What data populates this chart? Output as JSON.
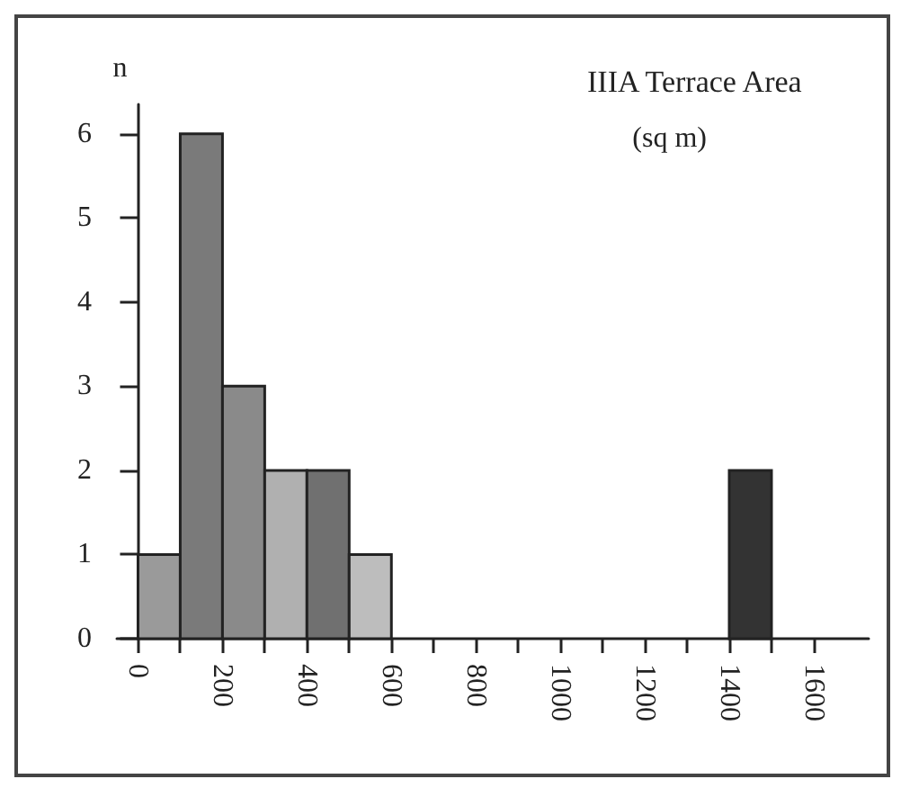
{
  "chart_data": {
    "type": "histogram",
    "title": "IIIA Terrace Area",
    "subtitle": "(sq m)",
    "ylabel": "n",
    "bins": [
      0,
      100,
      200,
      300,
      400,
      500,
      600,
      700,
      800,
      900,
      1000,
      1100,
      1200,
      1300,
      1400,
      1500,
      1600
    ],
    "values": [
      1,
      6,
      3,
      2,
      2,
      1,
      0,
      0,
      0,
      0,
      0,
      0,
      0,
      0,
      2,
      0
    ],
    "colors": [
      "#9a9a9a",
      "#7a7a7a",
      "#8a8a8a",
      "#b0b0b0",
      "#707070",
      "#bdbdbd",
      null,
      null,
      null,
      null,
      null,
      null,
      null,
      null,
      "#333333",
      null
    ],
    "xlim": [
      -50,
      1730
    ],
    "xticks": [
      0,
      {
        "value": 100,
        "label": null
      },
      200,
      {
        "value": 300,
        "label": null
      },
      400,
      {
        "value": 500,
        "label": null
      },
      600,
      {
        "value": 700,
        "label": null
      },
      800,
      {
        "value": 900,
        "label": null
      },
      1000,
      {
        "value": 1100,
        "label": null
      },
      1200,
      {
        "value": 1300,
        "label": null
      },
      1400,
      {
        "value": 1500,
        "label": null
      },
      1600
    ],
    "ylim": [
      0,
      6.35
    ],
    "yticks": [
      0,
      1,
      2,
      3,
      4,
      5,
      6
    ],
    "grid": false
  }
}
